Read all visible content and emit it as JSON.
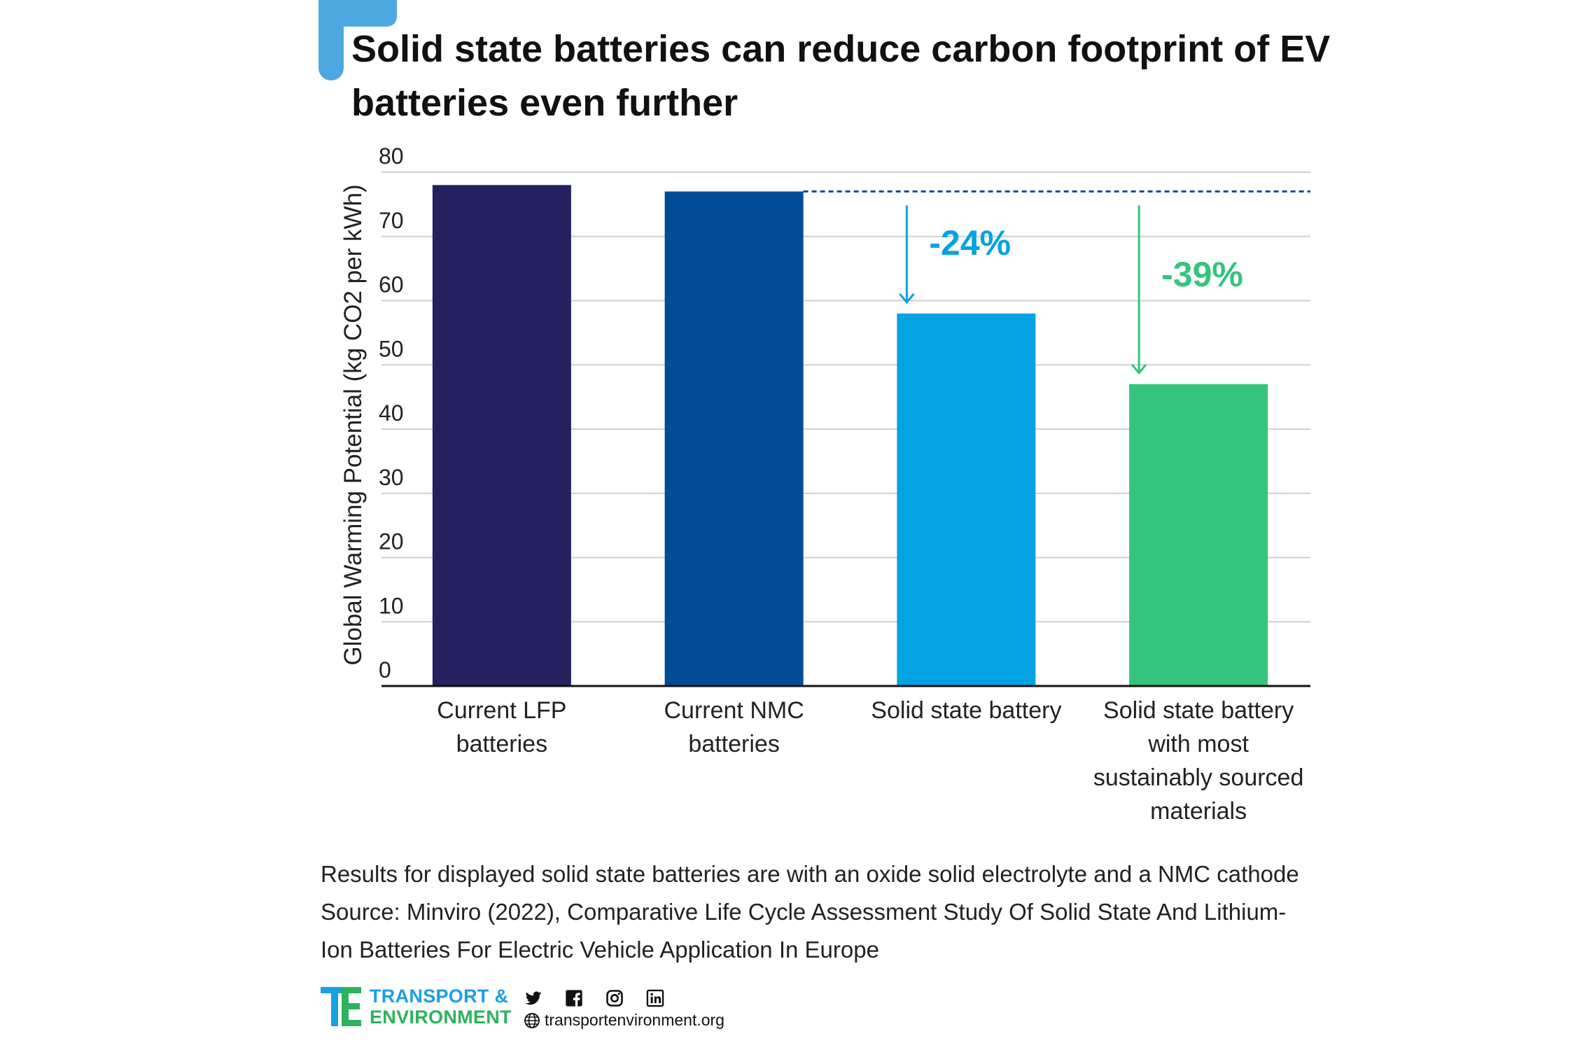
{
  "title": "Solid state batteries can reduce carbon footprint of EV batteries even further",
  "colors": {
    "accent": "#4da8e0",
    "lfp": "#252060",
    "nmc": "#004c96",
    "solid_state": "#03a3e3",
    "solid_state_sustainable": "#35c47d",
    "reference_line": "#0d4fa0",
    "grid": "#cfcfcf",
    "brand_blue": "#18a0e3",
    "brand_green": "#2bb35e"
  },
  "chart_data": {
    "type": "bar",
    "ylabel": "Global Warming Potential (kg CO2 per kWh)",
    "xlabel": "",
    "ylim": [
      0,
      80
    ],
    "yticks": [
      0,
      10,
      20,
      30,
      40,
      50,
      60,
      70,
      80
    ],
    "grid": true,
    "categories": [
      [
        "Current LFP",
        "batteries"
      ],
      [
        "Current NMC",
        "batteries"
      ],
      [
        "Solid state battery"
      ],
      [
        "Solid state battery",
        "with most",
        "sustainably sourced",
        "materials"
      ]
    ],
    "values": [
      78,
      77,
      58,
      47
    ],
    "bar_colors": [
      "#252060",
      "#004c96",
      "#03a3e3",
      "#35c47d"
    ],
    "reference_line": {
      "value": 77,
      "style": "dashed"
    },
    "annotations": [
      {
        "label": "-24%",
        "bar_index": 2,
        "color": "#03a3e3"
      },
      {
        "label": "-39%",
        "bar_index": 3,
        "color": "#35c47d"
      }
    ]
  },
  "footnotes": {
    "line1": "Results for displayed solid state batteries are with an oxide solid electrolyte and a NMC cathode",
    "line2": "Source: Minviro (2022), Comparative Life Cycle Assessment Study Of Solid State And Lithium-",
    "line3": "Ion Batteries For Electric Vehicle Application In Europe"
  },
  "footer": {
    "brand_line1": "TRANSPORT &",
    "brand_line2": "ENVIRONMENT",
    "website": "transportenvironment.org",
    "social_icons": [
      "twitter-icon",
      "facebook-icon",
      "instagram-icon",
      "linkedin-icon"
    ]
  }
}
